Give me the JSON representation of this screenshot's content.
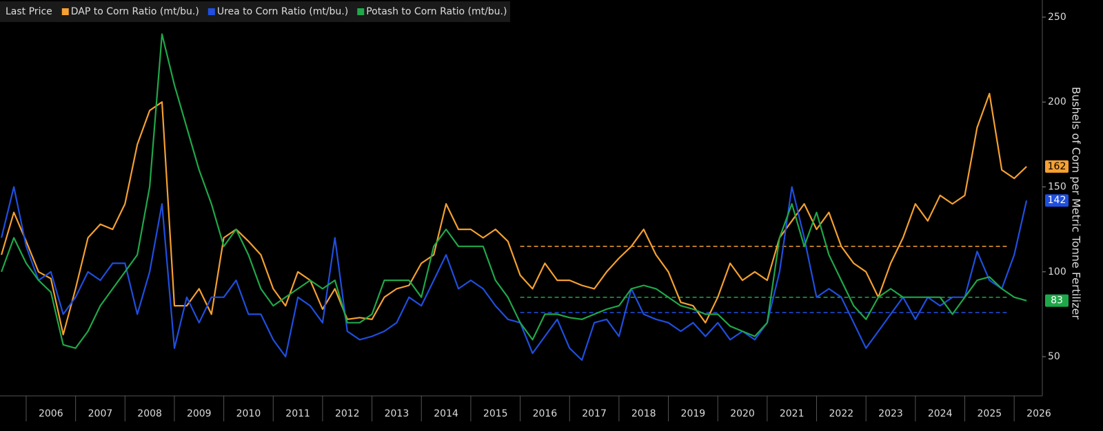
{
  "chart_data": {
    "type": "line",
    "legend_title": "Last Price",
    "y_label": "Bushels of Corn per Metric Tonne Fertilizer",
    "x": [
      2005.5,
      2005.75,
      2006,
      2006.25,
      2006.5,
      2006.75,
      2007,
      2007.25,
      2007.5,
      2007.75,
      2008,
      2008.25,
      2008.5,
      2008.75,
      2009,
      2009.25,
      2009.5,
      2009.75,
      2010,
      2010.25,
      2010.5,
      2010.75,
      2011,
      2011.25,
      2011.5,
      2011.75,
      2012,
      2012.25,
      2012.5,
      2012.75,
      2013,
      2013.25,
      2013.5,
      2013.75,
      2014,
      2014.25,
      2014.5,
      2014.75,
      2015,
      2015.25,
      2015.5,
      2015.75,
      2016,
      2016.25,
      2016.5,
      2016.75,
      2017,
      2017.25,
      2017.5,
      2017.75,
      2018,
      2018.25,
      2018.5,
      2018.75,
      2019,
      2019.25,
      2019.5,
      2019.75,
      2020,
      2020.25,
      2020.5,
      2020.75,
      2021,
      2021.25,
      2021.5,
      2021.75,
      2022,
      2022.25,
      2022.5,
      2022.75,
      2023,
      2023.25,
      2023.5,
      2023.75,
      2024,
      2024.25,
      2024.5,
      2024.75,
      2025,
      2025.25,
      2025.5,
      2025.75,
      2026,
      2026.25
    ],
    "series": [
      {
        "name": "DAP to Corn Ratio (mt/bu.)",
        "color": "#f5a031",
        "last_value": 162,
        "values": [
          110,
          135,
          118,
          100,
          96,
          63,
          90,
          120,
          128,
          125,
          140,
          175,
          195,
          200,
          80,
          80,
          90,
          75,
          120,
          125,
          118,
          110,
          90,
          80,
          100,
          95,
          78,
          90,
          72,
          73,
          72,
          85,
          90,
          92,
          105,
          110,
          140,
          125,
          125,
          120,
          125,
          118,
          98,
          90,
          105,
          95,
          95,
          92,
          90,
          100,
          108,
          115,
          125,
          110,
          100,
          82,
          80,
          70,
          85,
          105,
          95,
          100,
          95,
          120,
          130,
          140,
          125,
          135,
          115,
          105,
          100,
          85,
          105,
          120,
          140,
          130,
          145,
          140,
          145,
          185,
          205,
          160,
          155,
          162
        ]
      },
      {
        "name": "Urea to Corn Ratio (mt/bu.)",
        "color": "#1f4fe0",
        "last_value": 142,
        "values": [
          120,
          150,
          115,
          95,
          100,
          75,
          85,
          100,
          95,
          105,
          105,
          75,
          100,
          140,
          55,
          85,
          70,
          85,
          85,
          95,
          75,
          75,
          60,
          50,
          85,
          80,
          70,
          120,
          65,
          60,
          62,
          65,
          70,
          85,
          80,
          95,
          110,
          90,
          95,
          90,
          80,
          72,
          70,
          52,
          62,
          72,
          55,
          48,
          70,
          72,
          62,
          90,
          75,
          72,
          70,
          65,
          70,
          62,
          70,
          60,
          65,
          60,
          70,
          100,
          150,
          120,
          85,
          90,
          85,
          70,
          55,
          65,
          75,
          85,
          72,
          85,
          80,
          85,
          85,
          112,
          95,
          90,
          110,
          142
        ]
      },
      {
        "name": "Potash to Corn Ratio (mt/bu.)",
        "color": "#1fa84a",
        "last_value": 83,
        "values": [
          100,
          120,
          105,
          95,
          88,
          57,
          55,
          65,
          80,
          90,
          100,
          110,
          150,
          240,
          210,
          185,
          160,
          140,
          115,
          125,
          110,
          90,
          80,
          85,
          90,
          95,
          90,
          95,
          70,
          70,
          75,
          95,
          95,
          95,
          85,
          115,
          125,
          115,
          115,
          115,
          95,
          85,
          70,
          60,
          75,
          75,
          73,
          72,
          75,
          78,
          80,
          90,
          92,
          90,
          85,
          80,
          78,
          75,
          75,
          68,
          65,
          62,
          70,
          120,
          140,
          115,
          135,
          110,
          95,
          80,
          72,
          85,
          90,
          85,
          85,
          85,
          85,
          75,
          85,
          95,
          97,
          90,
          85,
          83
        ]
      }
    ],
    "reference_lines": [
      {
        "value": 115,
        "color": "#f5a031",
        "x_range": [
          2016,
          2025.85
        ]
      },
      {
        "value": 85,
        "color": "#1fa84a",
        "x_range": [
          2016,
          2025.85
        ]
      },
      {
        "value": 76,
        "color": "#1f4fe0",
        "x_range": [
          2016,
          2025.85
        ]
      }
    ],
    "xlim": [
      2005.47,
      2026.57
    ],
    "xticks": [
      2006,
      2007,
      2008,
      2009,
      2010,
      2011,
      2012,
      2013,
      2014,
      2015,
      2016,
      2017,
      2018,
      2019,
      2020,
      2021,
      2022,
      2023,
      2024,
      2025,
      2026
    ],
    "ylim": [
      26.9,
      260.1
    ],
    "yticks": [
      50,
      100,
      150,
      200,
      250
    ]
  }
}
